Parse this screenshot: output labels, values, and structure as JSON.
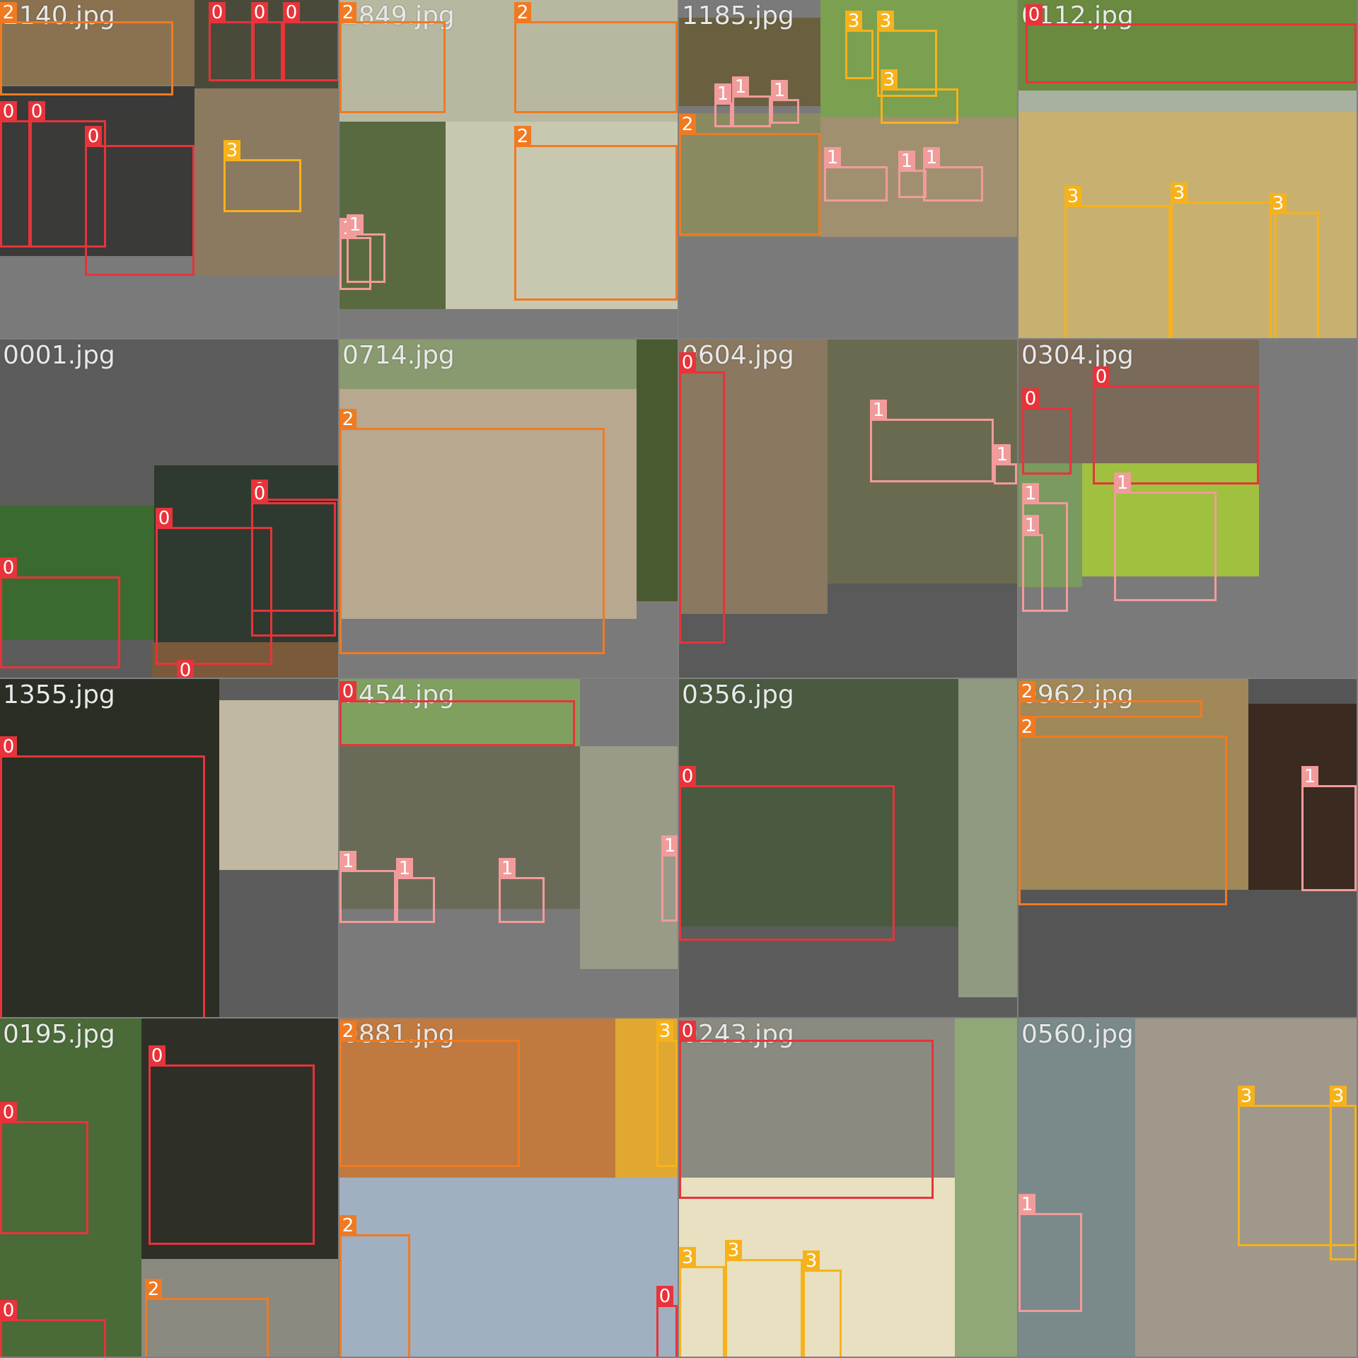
{
  "class_colors": {
    "0": "#e8333a",
    "1": "#f29b9b",
    "2": "#f07a22",
    "3": "#f7b21b"
  },
  "tiles": [
    {
      "filename": "2140.jpg",
      "bg": "#7a7a7a",
      "photos": [
        [
          "#8a7250",
          0,
          0,
          275,
          120
        ],
        [
          "#4a4a3a",
          275,
          0,
          203,
          125
        ],
        [
          "#3a3a38",
          0,
          122,
          275,
          240
        ],
        [
          "#8b7a60",
          275,
          125,
          203,
          265
        ]
      ],
      "boxes": [
        [
          "2",
          0,
          0,
          245,
          105
        ],
        [
          "0",
          295,
          0,
          65,
          85
        ],
        [
          "0",
          355,
          0,
          45,
          85
        ],
        [
          "0",
          400,
          0,
          80,
          85
        ],
        [
          "0",
          0,
          140,
          45,
          180
        ],
        [
          "0",
          40,
          140,
          110,
          180
        ],
        [
          "0",
          120,
          175,
          155,
          185
        ],
        [
          "3",
          316,
          195,
          110,
          75
        ]
      ]
    },
    {
      "filename": "2849.jpg",
      "bg": "#7a7a7a",
      "photos": [
        [
          "#b8b8a0",
          0,
          0,
          478,
          180
        ],
        [
          "#5a6a40",
          0,
          172,
          150,
          265
        ],
        [
          "#c8c8b0",
          150,
          172,
          328,
          265
        ]
      ],
      "boxes": [
        [
          "2",
          0,
          0,
          150,
          130
        ],
        [
          "2",
          247,
          0,
          231,
          130
        ],
        [
          "2",
          247,
          175,
          231,
          220
        ],
        [
          "1",
          0,
          305,
          45,
          75
        ],
        [
          "1",
          10,
          300,
          55,
          70
        ]
      ]
    },
    {
      "filename": "1185.jpg",
      "bg": "#7a7a7a",
      "photos": [
        [
          "#6a6040",
          0,
          25,
          200,
          125
        ],
        [
          "#7aa050",
          200,
          0,
          278,
          165
        ],
        [
          "#8a8a60",
          0,
          160,
          200,
          175
        ],
        [
          "#a09070",
          200,
          165,
          278,
          170
        ]
      ],
      "boxes": [
        [
          "1",
          50,
          115,
          25,
          35
        ],
        [
          "1",
          75,
          105,
          55,
          45
        ],
        [
          "1",
          130,
          110,
          40,
          35
        ],
        [
          "3",
          235,
          12,
          40,
          70
        ],
        [
          "3",
          280,
          12,
          85,
          95
        ],
        [
          "3",
          285,
          95,
          110,
          50
        ],
        [
          "2",
          0,
          158,
          200,
          145
        ],
        [
          "1",
          205,
          205,
          90,
          50
        ],
        [
          "1",
          310,
          210,
          40,
          40
        ],
        [
          "1",
          345,
          205,
          85,
          50
        ]
      ]
    },
    {
      "filename": "0112.jpg",
      "bg": "#9a9a9a",
      "photos": [
        [
          "#6a8a40",
          0,
          0,
          478,
          128
        ],
        [
          "#a8b0a0",
          0,
          128,
          478,
          30
        ],
        [
          "#c8b070",
          0,
          158,
          478,
          320
        ]
      ],
      "boxes": [
        [
          "0",
          10,
          3,
          468,
          85
        ],
        [
          "3",
          65,
          260,
          150,
          210
        ],
        [
          "3",
          215,
          255,
          150,
          220
        ],
        [
          "3",
          355,
          270,
          70,
          200
        ]
      ]
    },
    {
      "filename": "0001.jpg",
      "bg": "#5c5c5c",
      "photos": [
        [
          "#3a6a30",
          0,
          235,
          220,
          190
        ],
        [
          "#2e3a30",
          218,
          178,
          260,
          250
        ],
        [
          "#7a5a3a",
          215,
          428,
          263,
          50
        ]
      ],
      "boxes": [
        [
          "0",
          0,
          305,
          170,
          130
        ],
        [
          "0",
          220,
          235,
          165,
          195
        ],
        [
          "0",
          355,
          195,
          125,
          160
        ],
        [
          "0",
          355,
          200,
          120,
          190
        ],
        [
          "0",
          250,
          450,
          228,
          28
        ]
      ]
    },
    {
      "filename": "0714.jpg",
      "bg": "#7a7a7a",
      "photos": [
        [
          "#8a9a70",
          0,
          0,
          420,
          70
        ],
        [
          "#b8a890",
          0,
          70,
          420,
          325
        ],
        [
          "#4a5a30",
          420,
          0,
          58,
          370
        ]
      ],
      "boxes": [
        [
          "2",
          0,
          95,
          375,
          320
        ]
      ]
    },
    {
      "filename": "0604.jpg",
      "bg": "#5a5a5a",
      "photos": [
        [
          "#8a7860",
          0,
          0,
          210,
          388
        ],
        [
          "#6a6a50",
          210,
          0,
          268,
          345
        ]
      ],
      "boxes": [
        [
          "0",
          0,
          15,
          65,
          385
        ],
        [
          "1",
          270,
          82,
          175,
          90
        ],
        [
          "1",
          445,
          145,
          33,
          30
        ]
      ]
    },
    {
      "filename": "0304.jpg",
      "bg": "#7a7a7a",
      "photos": [
        [
          "#7a6a5a",
          0,
          0,
          340,
          175
        ],
        [
          "#7a9a60",
          0,
          175,
          90,
          175
        ],
        [
          "#a0c040",
          90,
          175,
          250,
          160
        ]
      ],
      "boxes": [
        [
          "0",
          5,
          66,
          70,
          95
        ],
        [
          "0",
          105,
          35,
          235,
          140
        ],
        [
          "1",
          5,
          200,
          65,
          155
        ],
        [
          "1",
          5,
          245,
          30,
          110
        ],
        [
          "1",
          135,
          185,
          145,
          155
        ]
      ]
    },
    {
      "filename": "1355.jpg",
      "bg": "#5c5c5c",
      "photos": [
        [
          "#2a2e24",
          0,
          0,
          310,
          478
        ],
        [
          "#c0b8a0",
          310,
          30,
          168,
          240
        ]
      ],
      "boxes": [
        [
          "0",
          0,
          78,
          290,
          400
        ]
      ]
    },
    {
      "filename": "7454.jpg",
      "bg": "#7a7a7a",
      "photos": [
        [
          "#80a060",
          0,
          0,
          340,
          95
        ],
        [
          "#6a6a58",
          0,
          95,
          340,
          230
        ],
        [
          "#9a9a88",
          340,
          95,
          138,
          315
        ]
      ],
      "boxes": [
        [
          "0",
          0,
          0,
          333,
          65
        ],
        [
          "1",
          0,
          240,
          80,
          75
        ],
        [
          "1",
          80,
          250,
          55,
          65
        ],
        [
          "1",
          225,
          250,
          65,
          65
        ],
        [
          "1",
          455,
          218,
          23,
          95
        ]
      ]
    },
    {
      "filename": "0356.jpg",
      "bg": "#5c5c5c",
      "photos": [
        [
          "#4a5a40",
          0,
          0,
          395,
          350
        ],
        [
          "#909a80",
          395,
          0,
          83,
          450
        ]
      ],
      "boxes": [
        [
          "0",
          0,
          120,
          305,
          220
        ]
      ]
    },
    {
      "filename": "0962.jpg",
      "bg": "#555555",
      "photos": [
        [
          "#a08858",
          0,
          0,
          325,
          298
        ],
        [
          "#3a2a20",
          325,
          35,
          153,
          263
        ]
      ],
      "boxes": [
        [
          "2",
          0,
          0,
          260,
          25
        ],
        [
          "2",
          0,
          50,
          295,
          240
        ],
        [
          "1",
          400,
          120,
          78,
          150
        ]
      ]
    },
    {
      "filename": "0195.jpg",
      "bg": "#5c5c5c",
      "photos": [
        [
          "#4a6a38",
          0,
          0,
          200,
          478
        ],
        [
          "#2e3028",
          200,
          0,
          278,
          340
        ],
        [
          "#8a8a80",
          200,
          340,
          278,
          138
        ]
      ],
      "boxes": [
        [
          "0",
          0,
          115,
          125,
          160
        ],
        [
          "0",
          210,
          35,
          235,
          255
        ],
        [
          "0",
          0,
          395,
          150,
          83
        ],
        [
          "2",
          205,
          365,
          175,
          113
        ]
      ]
    },
    {
      "filename": "0881.jpg",
      "bg": "#7a7a7a",
      "photos": [
        [
          "#c07a40",
          0,
          0,
          390,
          225
        ],
        [
          "#e0a830",
          390,
          0,
          88,
          225
        ],
        [
          "#a0b0c0",
          0,
          225,
          478,
          253
        ]
      ],
      "boxes": [
        [
          "2",
          0,
          0,
          255,
          180
        ],
        [
          "3",
          448,
          0,
          30,
          180
        ],
        [
          "2",
          0,
          275,
          100,
          203
        ],
        [
          "0",
          448,
          375,
          30,
          103
        ]
      ]
    },
    {
      "filename": "0243.jpg",
      "bg": "#7a7a7a",
      "photos": [
        [
          "#8a8a80",
          0,
          0,
          390,
          225
        ],
        [
          "#90a878",
          390,
          0,
          88,
          478
        ],
        [
          "#e8e0c0",
          0,
          225,
          390,
          253
        ]
      ],
      "boxes": [
        [
          "0",
          0,
          0,
          360,
          225
        ],
        [
          "3",
          0,
          320,
          65,
          155
        ],
        [
          "3",
          65,
          310,
          110,
          165
        ],
        [
          "3",
          175,
          325,
          55,
          150
        ]
      ]
    },
    {
      "filename": "0560.jpg",
      "bg": "#8a8a8a",
      "photos": [
        [
          "#7a8a8a",
          0,
          0,
          165,
          478
        ],
        [
          "#a0988a",
          165,
          0,
          313,
          478
        ]
      ],
      "boxes": [
        [
          "1",
          0,
          245,
          90,
          140
        ],
        [
          "3",
          310,
          92,
          170,
          200
        ],
        [
          "3",
          440,
          92,
          38,
          220
        ]
      ]
    }
  ]
}
